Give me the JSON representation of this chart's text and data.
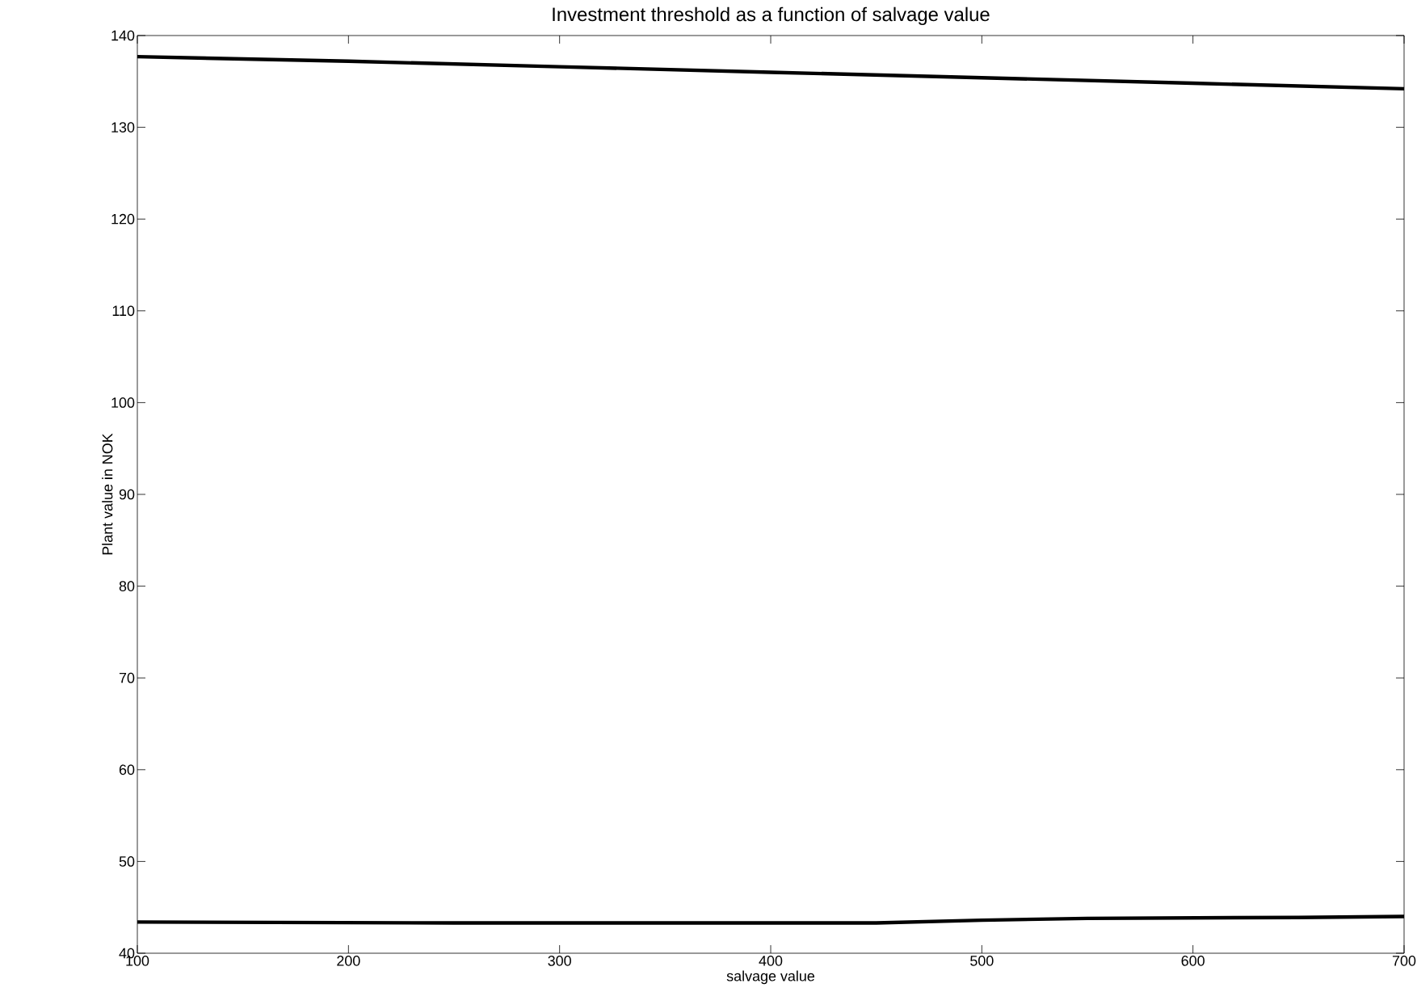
{
  "chart_data": {
    "type": "line",
    "title": "Investment threshold as a function of salvage value",
    "xlabel": "salvage value",
    "ylabel": "Plant value in NOK",
    "xlim": [
      100,
      700
    ],
    "ylim": [
      40,
      140
    ],
    "xticks": [
      100,
      200,
      300,
      400,
      500,
      600,
      700
    ],
    "yticks": [
      40,
      50,
      60,
      70,
      80,
      90,
      100,
      110,
      120,
      130,
      140
    ],
    "marker": "none",
    "line_style": "solid",
    "series": [
      {
        "color": "#000000",
        "x": [
          100,
          200,
          300,
          400,
          500,
          600,
          700
        ],
        "values": [
          137.7,
          137.2,
          136.6,
          136.0,
          135.4,
          134.8,
          134.2
        ]
      },
      {
        "color": "#000000",
        "x": [
          100,
          250,
          300,
          450,
          500,
          550,
          650,
          700
        ],
        "values": [
          43.4,
          43.3,
          43.3,
          43.3,
          43.6,
          43.8,
          43.9,
          44.0
        ]
      }
    ]
  }
}
